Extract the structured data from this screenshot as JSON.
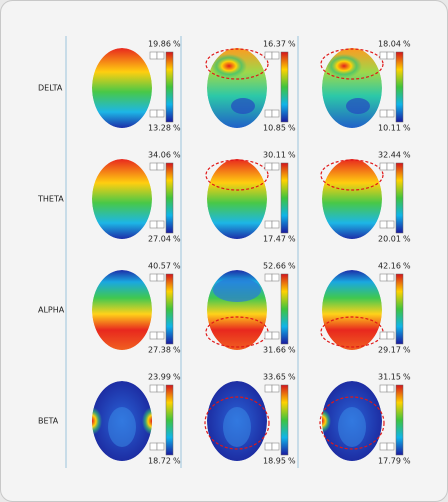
{
  "unit": "%",
  "rows": [
    {
      "label": "DELTA",
      "maps": [
        {
          "max": "19.86",
          "min": "13.28"
        },
        {
          "max": "16.37",
          "min": "10.85"
        },
        {
          "max": "18.04",
          "min": "10.11"
        }
      ]
    },
    {
      "label": "THETA",
      "maps": [
        {
          "max": "34.06",
          "min": "27.04"
        },
        {
          "max": "30.11",
          "min": "17.47"
        },
        {
          "max": "32.44",
          "min": "20.01"
        }
      ]
    },
    {
      "label": "ALPHA",
      "maps": [
        {
          "max": "40.57",
          "min": "27.38"
        },
        {
          "max": "52.66",
          "min": "31.66"
        },
        {
          "max": "42.16",
          "min": "29.17"
        }
      ]
    },
    {
      "label": "BETA",
      "maps": [
        {
          "max": "23.99",
          "min": "18.72"
        },
        {
          "max": "33.65",
          "min": "18.95"
        },
        {
          "max": "31.15",
          "min": "17.79"
        }
      ]
    }
  ]
}
